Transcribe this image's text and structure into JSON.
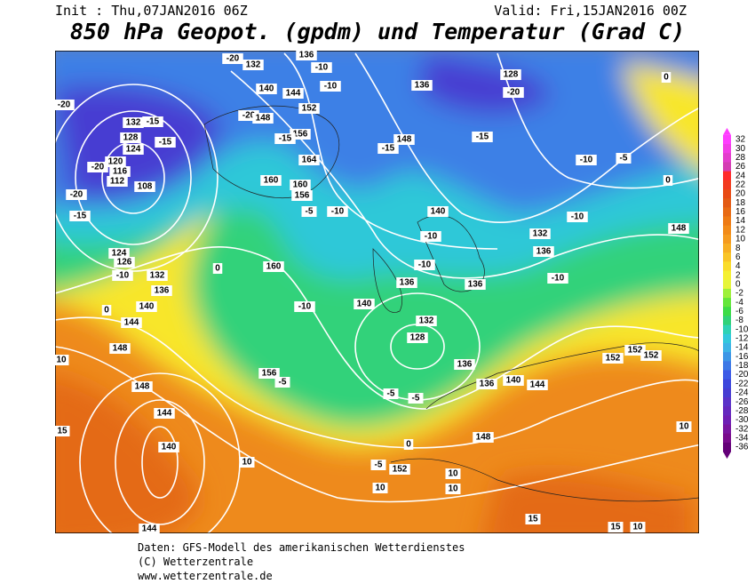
{
  "header": {
    "init": "Init : Thu,07JAN2016 06Z",
    "valid": "Valid: Fri,15JAN2016 00Z",
    "title": "850 hPa Geopot. (gpdm) und Temperatur (Grad C)"
  },
  "legend": {
    "levels": [
      32,
      30,
      28,
      26,
      24,
      22,
      20,
      18,
      16,
      14,
      12,
      10,
      8,
      6,
      4,
      2,
      0,
      -2,
      -4,
      -6,
      -8,
      -10,
      -12,
      -14,
      -16,
      -18,
      -20,
      -22,
      -24,
      -26,
      -28,
      -30,
      -32,
      -34,
      -36
    ],
    "colors": [
      "#ff3cff",
      "#f23ce6",
      "#e33ccc",
      "#d43cb3",
      "#ff2a2a",
      "#f23a1e",
      "#e84a14",
      "#e35a14",
      "#e86a14",
      "#ee7a14",
      "#f28a18",
      "#f59a1e",
      "#f7ae22",
      "#f9c426",
      "#fadc2a",
      "#f5f030",
      "#e6f53a",
      "#9ef03a",
      "#64e63a",
      "#3cdc46",
      "#30d278",
      "#2ed2b4",
      "#32c8dc",
      "#3cb4e6",
      "#3c96e6",
      "#3c78e6",
      "#3c5ae6",
      "#3c46dc",
      "#463cd2",
      "#5a32c8",
      "#6428be",
      "#6e1eb4",
      "#7814a0",
      "#780a8c",
      "#640078"
    ]
  },
  "map_labels": [
    "-20",
    "132",
    "136",
    "-10",
    "140",
    "144",
    "-10",
    "152",
    "136",
    "128",
    "-20",
    "-20",
    "132",
    "-15",
    "128",
    "124",
    "-15",
    "120",
    "116",
    "-20",
    "112",
    "108",
    "-20",
    "-15",
    "-20",
    "148",
    "156",
    "-15",
    "164",
    "160",
    "160",
    "156",
    "-5",
    "-10",
    "148",
    "-15",
    "140",
    "-10",
    "-15",
    "-10",
    "-5",
    "-10",
    "132",
    "136",
    "148",
    "124",
    "126",
    "132",
    "-10",
    "136",
    "140",
    "144",
    "148",
    "0",
    "160",
    "-10",
    "140",
    "136",
    "-10",
    "132",
    "128",
    "136",
    "136",
    "136",
    "140",
    "144",
    "152",
    "152",
    "152",
    "-10",
    "148",
    "144",
    "140",
    "10",
    "15",
    "10",
    "144",
    "148",
    "152",
    "10",
    "10",
    "10",
    "10",
    "15",
    "15",
    "10",
    "-5",
    "0",
    "-5",
    "-5",
    "156",
    "-5",
    "0",
    "0",
    "0"
  ],
  "footer": {
    "source": "Daten: GFS-Modell des amerikanischen Wetterdienstes",
    "copyright": "(C) Wetterzentrale",
    "url": "www.wetterzentrale.de"
  }
}
